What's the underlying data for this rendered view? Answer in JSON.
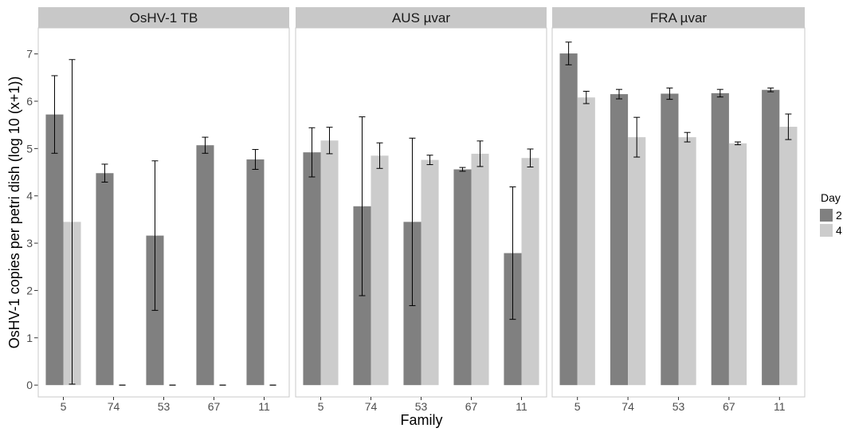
{
  "chart_data": {
    "type": "bar",
    "xlabel": "Family",
    "ylabel": "OsHV-1 copies per petri dish (log 10 (x+1))",
    "ylim": [
      -0.25,
      7.55
    ],
    "y_ticks": [
      0,
      1,
      2,
      3,
      4,
      5,
      6,
      7
    ],
    "categories": [
      "5",
      "74",
      "53",
      "67",
      "11"
    ],
    "grid": false,
    "legend": {
      "title": "Day",
      "position": "right",
      "entries": [
        {
          "label": "2",
          "color": "#808080"
        },
        {
          "label": "4",
          "color": "#cccccc"
        }
      ]
    },
    "panels": [
      {
        "title": "OsHV-1 TB",
        "series": [
          {
            "name": "2",
            "values": [
              5.72,
              4.48,
              3.16,
              5.07,
              4.77
            ],
            "errors": [
              0.82,
              0.19,
              1.58,
              0.17,
              0.21
            ]
          },
          {
            "name": "4",
            "values": [
              3.45,
              0,
              0,
              0,
              0
            ],
            "errors": [
              3.43,
              0,
              0,
              0,
              0
            ]
          }
        ]
      },
      {
        "title": "AUS µvar",
        "series": [
          {
            "name": "2",
            "values": [
              4.92,
              3.78,
              3.45,
              4.56,
              2.79
            ],
            "errors": [
              0.52,
              1.89,
              1.77,
              0.04,
              1.4
            ]
          },
          {
            "name": "4",
            "values": [
              5.17,
              4.85,
              4.76,
              4.89,
              4.8
            ],
            "errors": [
              0.28,
              0.27,
              0.1,
              0.27,
              0.19
            ]
          }
        ]
      },
      {
        "title": "FRA µvar",
        "series": [
          {
            "name": "2",
            "values": [
              7.01,
              6.15,
              6.16,
              6.17,
              6.24
            ],
            "errors": [
              0.24,
              0.1,
              0.12,
              0.08,
              0.04
            ]
          },
          {
            "name": "4",
            "values": [
              6.08,
              5.24,
              5.24,
              5.11,
              5.46
            ],
            "errors": [
              0.13,
              0.42,
              0.1,
              0.03,
              0.27
            ]
          }
        ]
      }
    ]
  }
}
